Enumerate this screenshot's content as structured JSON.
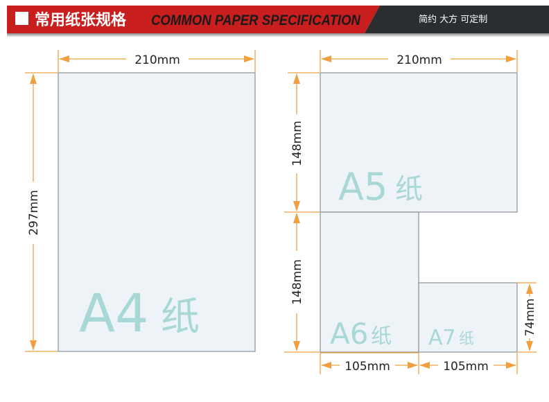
{
  "header": {
    "title_cn": "常用纸张规格",
    "title_en": "COMMON PAPER SPECIFICATION",
    "tagline": "简约 大方 可定制",
    "colors": {
      "red": "#c81e1e",
      "dark": "#2b2e31",
      "accent": "#f0a040"
    }
  },
  "papers": {
    "a4": {
      "label": "A4",
      "suffix": "纸",
      "width": "210mm",
      "height": "297mm"
    },
    "a5": {
      "label": "A5",
      "suffix": "纸",
      "width": "210mm",
      "height": "148mm"
    },
    "a6": {
      "label": "A6",
      "suffix": "纸",
      "width": "105mm",
      "height": "148mm"
    },
    "a7": {
      "label": "A7",
      "suffix": "纸",
      "width": "105mm",
      "height": "74mm"
    }
  }
}
